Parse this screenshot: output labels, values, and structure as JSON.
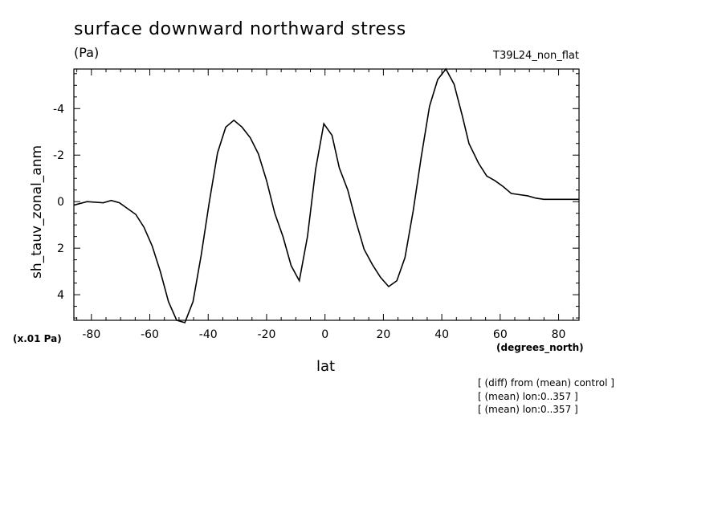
{
  "header": {
    "title": "surface downward northward stress",
    "units": "(Pa)",
    "run": "T39L24_non_flat"
  },
  "axes": {
    "scale_note": "(x.01 Pa)",
    "x_units": "(degrees_north)"
  },
  "notes": [
    "[ (diff) from (mean) control ]",
    "[ (mean) lon:0..357 ]",
    "[ (mean) lon:0..357 ]"
  ],
  "chart_data": {
    "type": "line",
    "xlabel": "lat",
    "ylabel": "sh_tauv_zonal_anm",
    "xlim": [
      -86,
      87
    ],
    "ylim": [
      5.1,
      -5.7
    ],
    "y_inverted": true,
    "x_ticks": [
      -80,
      -60,
      -40,
      -20,
      0,
      20,
      40,
      60,
      80
    ],
    "x_tick_labels": [
      "-80",
      "-60",
      "-40",
      "-20",
      "0",
      "20",
      "40",
      "60",
      "80"
    ],
    "y_ticks": [
      4,
      2,
      0,
      -2,
      -4
    ],
    "y_tick_labels": [
      "4",
      "2",
      "0",
      "-2",
      "-4"
    ],
    "line_color": "#000000",
    "series": [
      {
        "x": [
          -86,
          -81.5,
          -76,
          -73.2,
          -70.4,
          -67.6,
          -64.8,
          -62,
          -59.2,
          -56.4,
          -53.6,
          -50.8,
          -48,
          -45.2,
          -42.4,
          -39.6,
          -36.8,
          -34,
          -31.2,
          -28.4,
          -25.6,
          -22.8,
          -20,
          -17.2,
          -14.4,
          -11.6,
          -8.8,
          -6,
          -3.2,
          -0.4,
          2.4,
          4.9,
          7.8,
          10.6,
          13.4,
          16.2,
          19,
          21.8,
          24.6,
          27.4,
          30.2,
          33,
          35.8,
          38.6,
          41.4,
          44.2,
          47,
          49.3,
          52.6,
          55.4,
          58.2,
          61,
          63.8,
          66.6,
          69.4,
          72.2,
          75,
          77.8,
          80.6,
          83.4,
          87
        ],
        "values": [
          0.15,
          0.0,
          0.05,
          -0.05,
          0.05,
          0.3,
          0.55,
          1.1,
          1.9,
          3.0,
          4.3,
          5.1,
          5.2,
          4.3,
          2.3,
          0.0,
          -2.1,
          -3.2,
          -3.5,
          -3.2,
          -2.75,
          -2.05,
          -0.9,
          0.5,
          1.5,
          2.75,
          3.4,
          1.5,
          -1.4,
          -3.35,
          -2.85,
          -1.45,
          -0.5,
          0.85,
          2.05,
          2.7,
          3.25,
          3.65,
          3.4,
          2.4,
          0.4,
          -1.95,
          -4.1,
          -5.25,
          -5.7,
          -5.05,
          -3.7,
          -2.5,
          -1.65,
          -1.1,
          -0.9,
          -0.65,
          -0.35,
          -0.3,
          -0.25,
          -0.15,
          -0.1,
          -0.1,
          -0.1,
          -0.1,
          -0.1
        ]
      }
    ]
  }
}
